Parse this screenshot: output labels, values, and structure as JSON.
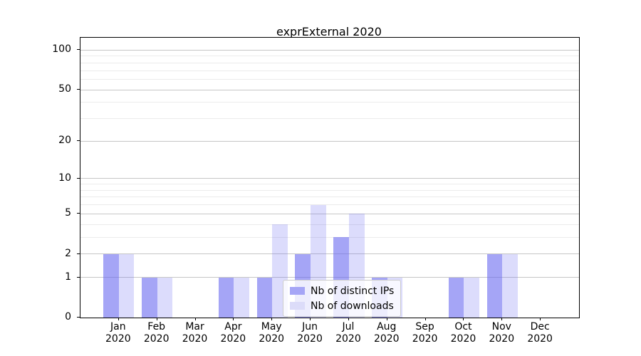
{
  "title": "exprExternal 2020",
  "colors": {
    "bar_distinct_ips": "rgba(105,105,240,0.6)",
    "bar_downloads": "rgba(105,105,240,0.23)",
    "legend_swatch_distinct_ips": "#a5a5f6",
    "legend_swatch_downloads": "#dcdcf9",
    "grid_major": "#c6c6c6",
    "grid_minor": "#ebebeb",
    "spine": "#000000"
  },
  "chart_data": {
    "type": "bar",
    "title": "exprExternal 2020",
    "categories": [
      "Jan 2020",
      "Feb 2020",
      "Mar 2020",
      "Apr 2020",
      "May 2020",
      "Jun 2020",
      "Jul 2020",
      "Aug 2020",
      "Sep 2020",
      "Oct 2020",
      "Nov 2020",
      "Dec 2020"
    ],
    "x_tick_lines": [
      [
        "Jan",
        "2020"
      ],
      [
        "Feb",
        "2020"
      ],
      [
        "Mar",
        "2020"
      ],
      [
        "Apr",
        "2020"
      ],
      [
        "May",
        "2020"
      ],
      [
        "Jun",
        "2020"
      ],
      [
        "Jul",
        "2020"
      ],
      [
        "Aug",
        "2020"
      ],
      [
        "Sep",
        "2020"
      ],
      [
        "Oct",
        "2020"
      ],
      [
        "Nov",
        "2020"
      ],
      [
        "Dec",
        "2020"
      ]
    ],
    "series": [
      {
        "name": "Nb of distinct IPs",
        "values": [
          2,
          1,
          0,
          1,
          1,
          2,
          3,
          1,
          0,
          1,
          2,
          0
        ]
      },
      {
        "name": "Nb of downloads",
        "values": [
          2,
          1,
          0,
          1,
          4,
          6,
          5,
          1,
          0,
          1,
          2,
          0
        ]
      }
    ],
    "yscale": "log1p",
    "ylim": [
      0,
      124
    ],
    "y_major_ticks": [
      0,
      1,
      2,
      5,
      10,
      20,
      50,
      100
    ],
    "y_minor_ticks": [
      3,
      4,
      6,
      7,
      8,
      9,
      30,
      40,
      60,
      70,
      80,
      90
    ],
    "grid": true,
    "legend_position": "lower center",
    "xlabel": "",
    "ylabel": ""
  }
}
